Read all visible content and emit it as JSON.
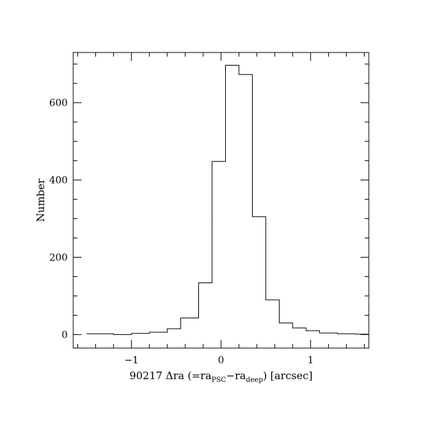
{
  "chart_data": {
    "type": "histogram",
    "title": "",
    "xlabel": {
      "prefix": "90217 Δra (=ra",
      "sub1": "PSC",
      "mid": "−ra",
      "sub2": "deep",
      "suffix": ") [arcsec]"
    },
    "ylabel": "Number",
    "xlim": [
      -1.65,
      1.65
    ],
    "ylim": [
      -35,
      730
    ],
    "x_major_ticks": [
      -1,
      0,
      1
    ],
    "x_tick_labels": [
      "−1",
      "0",
      "1"
    ],
    "x_minor_step": 0.2,
    "y_major_ticks": [
      0,
      200,
      400,
      600
    ],
    "y_tick_labels": [
      "0",
      "200",
      "400",
      "600"
    ],
    "y_minor_step": 50,
    "bin_edges": [
      -1.5,
      -1.2,
      -1.0,
      -0.8,
      -0.6,
      -0.45,
      -0.25,
      -0.1,
      0.05,
      0.2,
      0.35,
      0.5,
      0.65,
      0.8,
      0.95,
      1.1,
      1.3,
      1.5,
      1.65
    ],
    "counts": [
      2,
      0,
      3,
      6,
      15,
      43,
      134,
      448,
      697,
      673,
      305,
      90,
      30,
      17,
      10,
      4,
      2,
      1
    ],
    "grid": false,
    "legend": "none"
  }
}
